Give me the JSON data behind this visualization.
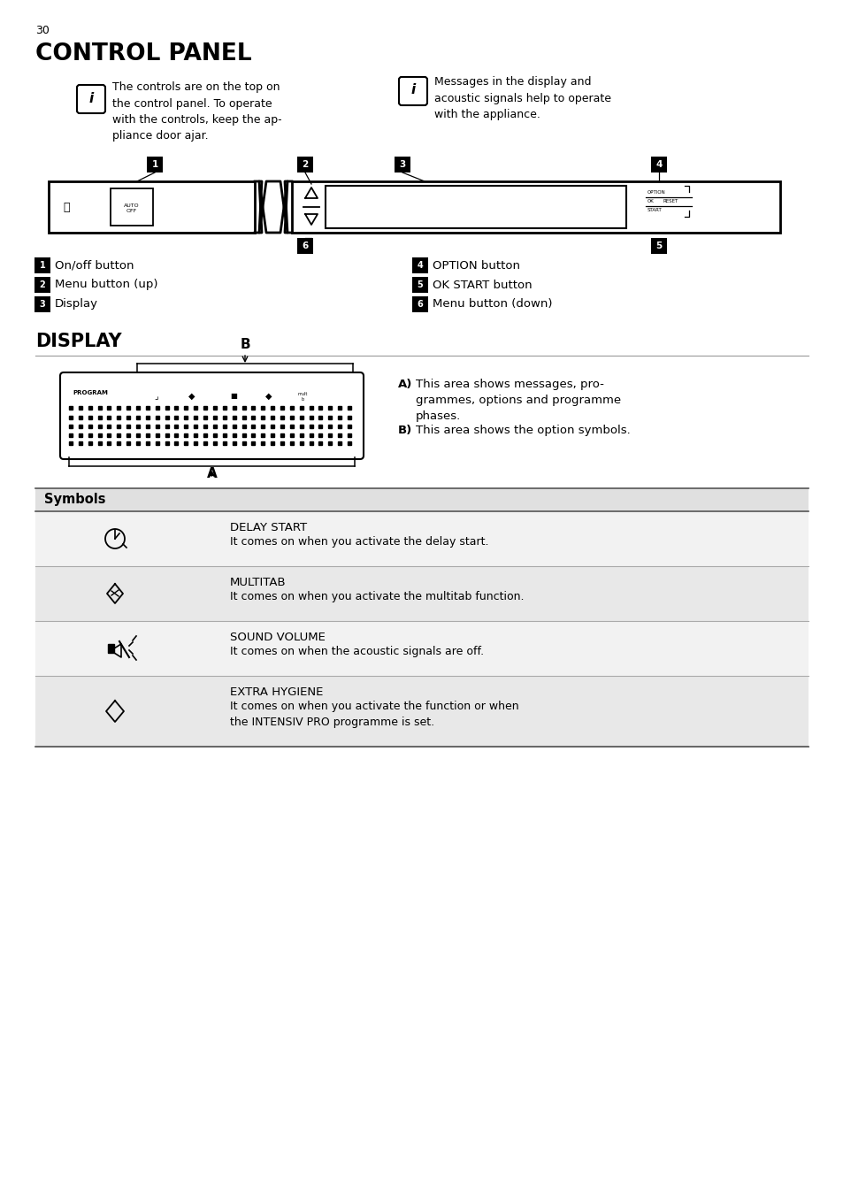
{
  "page_number": "30",
  "title": "CONTROL PANEL",
  "bg_color": "#ffffff",
  "info1_text": "The controls are on the top on\nthe control panel. To operate\nwith the controls, keep the ap-\npliance door ajar.",
  "info2_text": "Messages in the display and\nacoustic signals help to operate\nwith the appliance.",
  "labels_left": [
    [
      "1",
      "On/off button"
    ],
    [
      "2",
      "Menu button (up)"
    ],
    [
      "3",
      "Display"
    ]
  ],
  "labels_right": [
    [
      "4",
      "OPTION button"
    ],
    [
      "5",
      "OK START button"
    ],
    [
      "6",
      "Menu button (down)"
    ]
  ],
  "display_title": "DISPLAY",
  "note_A": "This area shows messages, pro-\ngrammes, options and programme\nphases.",
  "note_B": "This area shows the option symbols.",
  "symbols_header": "Symbols",
  "rows": [
    {
      "title": "DELAY START",
      "desc": "It comes on when you activate the delay start.",
      "shade": false
    },
    {
      "title": "MULTITAB",
      "desc": "It comes on when you activate the multitab function.",
      "shade": true
    },
    {
      "title": "SOUND VOLUME",
      "desc": "It comes on when the acoustic signals are off.",
      "shade": false
    },
    {
      "title": "EXTRA HYGIENE",
      "desc": "It comes on when you activate the function or when\nthe INTENSIV PRO programme is set.",
      "shade": true
    }
  ]
}
